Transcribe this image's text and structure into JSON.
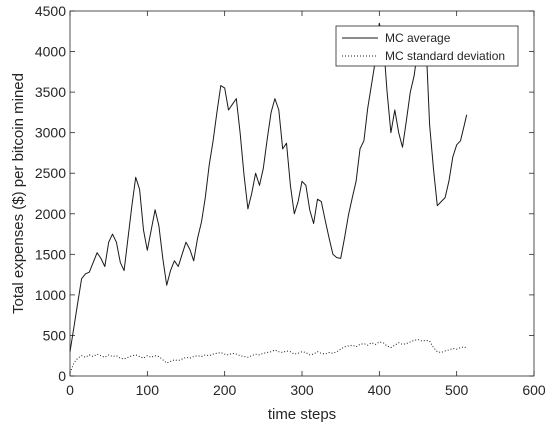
{
  "chart_data": {
    "type": "line",
    "title": "",
    "xlabel": "time steps",
    "ylabel": "Total expenses ($) per bitcoin mined",
    "xlim": [
      0,
      600
    ],
    "ylim": [
      0,
      4500
    ],
    "xticks": [
      0,
      100,
      200,
      300,
      400,
      500,
      600
    ],
    "yticks": [
      0,
      500,
      1000,
      1500,
      2000,
      2500,
      3000,
      3500,
      4000,
      4500
    ],
    "grid": false,
    "legend_position": "top-right",
    "series": [
      {
        "name": "MC average",
        "style": "solid",
        "color": "#1a1a1a",
        "x": [
          0,
          5,
          10,
          15,
          20,
          25,
          30,
          35,
          40,
          45,
          50,
          55,
          60,
          65,
          70,
          75,
          80,
          85,
          90,
          95,
          100,
          105,
          110,
          115,
          120,
          125,
          130,
          135,
          140,
          145,
          150,
          155,
          160,
          165,
          170,
          175,
          180,
          185,
          190,
          195,
          200,
          205,
          210,
          215,
          220,
          225,
          230,
          235,
          240,
          245,
          250,
          255,
          260,
          265,
          270,
          275,
          280,
          285,
          290,
          295,
          300,
          305,
          310,
          315,
          320,
          325,
          330,
          335,
          340,
          345,
          350,
          355,
          360,
          365,
          370,
          375,
          380,
          385,
          390,
          395,
          400,
          405,
          410,
          415,
          420,
          425,
          430,
          435,
          440,
          445,
          450,
          455,
          460,
          465,
          470,
          475,
          480,
          485,
          490,
          495,
          500,
          505,
          510,
          513
        ],
        "y": [
          300,
          600,
          900,
          1200,
          1260,
          1280,
          1400,
          1520,
          1450,
          1350,
          1650,
          1750,
          1650,
          1400,
          1300,
          1700,
          2100,
          2450,
          2300,
          1800,
          1550,
          1800,
          2050,
          1850,
          1450,
          1120,
          1300,
          1420,
          1350,
          1500,
          1650,
          1560,
          1420,
          1700,
          1900,
          2200,
          2600,
          2900,
          3250,
          3580,
          3550,
          3280,
          3350,
          3420,
          3000,
          2480,
          2060,
          2250,
          2500,
          2350,
          2560,
          2920,
          3250,
          3420,
          3280,
          2800,
          2870,
          2350,
          2000,
          2150,
          2400,
          2350,
          2050,
          1880,
          2180,
          2150,
          1920,
          1700,
          1500,
          1460,
          1450,
          1700,
          1980,
          2200,
          2400,
          2800,
          2900,
          3300,
          3600,
          3900,
          4350,
          4150,
          3500,
          3000,
          3280,
          3000,
          2820,
          3150,
          3500,
          3700,
          4050,
          4100,
          4200,
          3100,
          2550,
          2100,
          2150,
          2200,
          2400,
          2700,
          2850,
          2900,
          3100,
          3220
        ]
      },
      {
        "name": "MC standard deviation",
        "style": "dotted",
        "color": "#1a1a1a",
        "x": [
          0,
          5,
          10,
          15,
          20,
          25,
          30,
          35,
          40,
          45,
          50,
          55,
          60,
          65,
          70,
          75,
          80,
          85,
          90,
          95,
          100,
          105,
          110,
          115,
          120,
          125,
          130,
          135,
          140,
          145,
          150,
          155,
          160,
          165,
          170,
          175,
          180,
          185,
          190,
          195,
          200,
          205,
          210,
          215,
          220,
          225,
          230,
          235,
          240,
          245,
          250,
          255,
          260,
          265,
          270,
          275,
          280,
          285,
          290,
          295,
          300,
          305,
          310,
          315,
          320,
          325,
          330,
          335,
          340,
          345,
          350,
          355,
          360,
          365,
          370,
          375,
          380,
          385,
          390,
          395,
          400,
          405,
          410,
          415,
          420,
          425,
          430,
          435,
          440,
          445,
          450,
          455,
          460,
          465,
          470,
          475,
          480,
          485,
          490,
          495,
          500,
          505,
          510,
          513
        ],
        "y": [
          40,
          160,
          220,
          250,
          230,
          260,
          240,
          270,
          250,
          230,
          260,
          240,
          250,
          220,
          210,
          230,
          250,
          260,
          240,
          220,
          250,
          230,
          250,
          240,
          200,
          160,
          180,
          200,
          190,
          210,
          230,
          220,
          240,
          250,
          240,
          260,
          250,
          270,
          280,
          290,
          270,
          260,
          280,
          270,
          250,
          240,
          230,
          250,
          270,
          260,
          280,
          290,
          300,
          320,
          300,
          290,
          310,
          300,
          270,
          280,
          300,
          290,
          260,
          270,
          300,
          280,
          270,
          290,
          280,
          300,
          330,
          360,
          370,
          380,
          360,
          390,
          400,
          380,
          410,
          390,
          420,
          410,
          370,
          350,
          380,
          410,
          390,
          400,
          420,
          440,
          450,
          430,
          440,
          430,
          350,
          300,
          290,
          310,
          320,
          340,
          330,
          350,
          360,
          340
        ]
      }
    ]
  }
}
